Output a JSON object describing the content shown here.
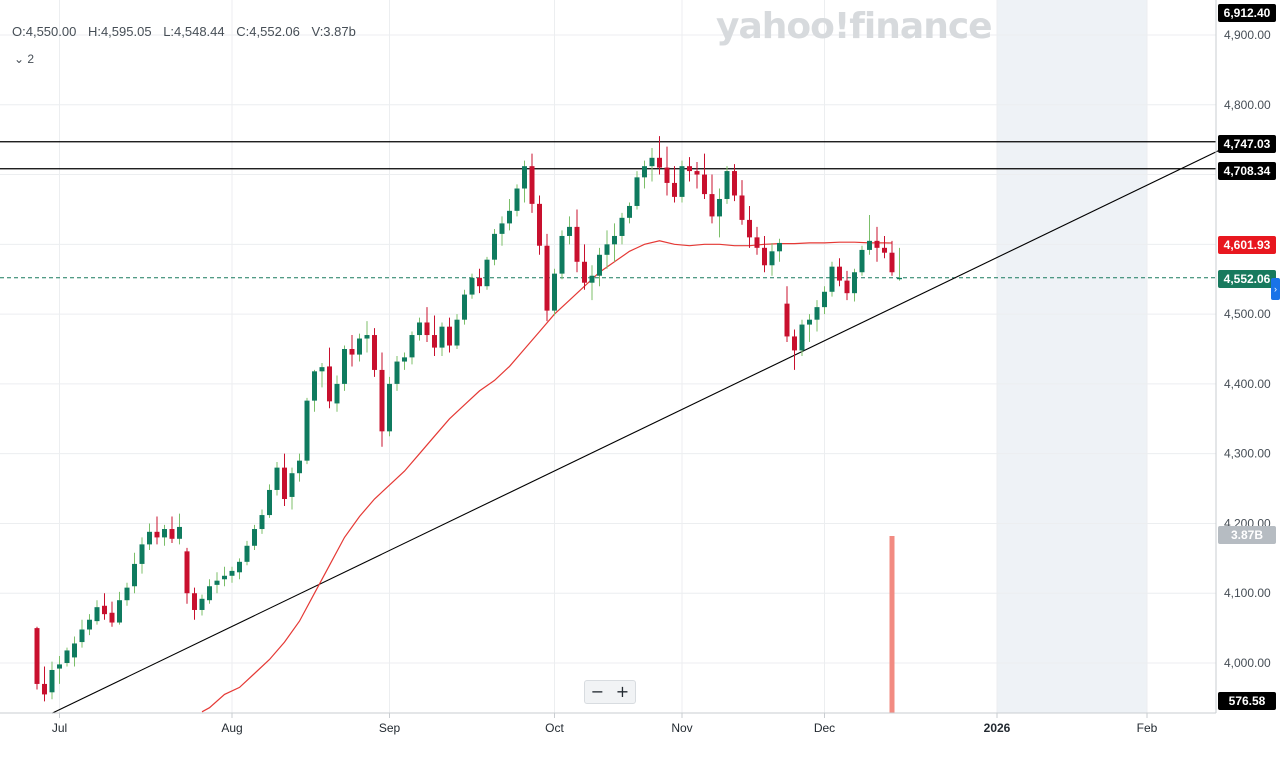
{
  "header": {
    "open": "O:4,550.00",
    "high": "H:4,595.05",
    "low": "L:4,548.44",
    "close": "C:4,552.06",
    "volume": "V:3.87b",
    "indicator_toggle": "⌄ 2"
  },
  "watermark": "yahoo!finance",
  "zoom": {
    "minus": "−",
    "plus": "+"
  },
  "price_tags": {
    "top": "6,912.40",
    "res_high": "4,747.03",
    "res_low": "4,708.34",
    "sma": "4,601.93",
    "last": "4,552.06",
    "volume": "3.87B",
    "bottom": "576.58"
  },
  "colors": {
    "up": "#0f7b5f",
    "down": "#c8102e",
    "sma": "#e53935",
    "volume_bar": "#f28b82",
    "last_price": "#187a5e",
    "sma_tag": "#e8171f",
    "volume_tag": "#b6bcc2",
    "black_tag": "#000000"
  },
  "chart_data": {
    "type": "candlestick",
    "ylim": [
      3930,
      4910
    ],
    "yticks": [
      4000,
      4100,
      4200,
      4300,
      4400,
      4500,
      4600,
      4700,
      4800,
      4900
    ],
    "ytick_labels": [
      "4,000.00",
      "4,100.00",
      "4,200.00",
      "4,300.00",
      "4,400.00",
      "4,500.00",
      "4,600.00",
      "4,700.00",
      "4,800.00",
      "4,900.00"
    ],
    "x_labels": [
      {
        "label": "Jul",
        "idx": 3
      },
      {
        "label": "Aug",
        "idx": 26
      },
      {
        "label": "Sep",
        "idx": 47
      },
      {
        "label": "Oct",
        "idx": 69
      },
      {
        "label": "Nov",
        "idx": 86
      },
      {
        "label": "Dec",
        "idx": 105
      },
      {
        "label": "2026",
        "idx": 128
      },
      {
        "label": "Feb",
        "idx": 148
      }
    ],
    "forecast_shade_idx": [
      128,
      148
    ],
    "horizontal_lines": [
      4747.03,
      4708.34
    ],
    "last_price_line": 4552.06,
    "trendline": [
      {
        "idx": 2,
        "value": 3928
      },
      {
        "idx": 160,
        "value": 4747
      }
    ],
    "candles": [
      [
        4050,
        4052,
        3962,
        3970
      ],
      [
        3970,
        3995,
        3945,
        3955
      ],
      [
        3958,
        4002,
        3948,
        3990
      ],
      [
        3992,
        4010,
        3970,
        3998
      ],
      [
        4000,
        4022,
        3995,
        4018
      ],
      [
        4008,
        4038,
        3995,
        4028
      ],
      [
        4030,
        4062,
        4022,
        4048
      ],
      [
        4048,
        4070,
        4040,
        4062
      ],
      [
        4060,
        4090,
        4055,
        4080
      ],
      [
        4082,
        4100,
        4062,
        4070
      ],
      [
        4072,
        4088,
        4052,
        4058
      ],
      [
        4058,
        4102,
        4055,
        4090
      ],
      [
        4090,
        4115,
        4082,
        4108
      ],
      [
        4110,
        4158,
        4100,
        4142
      ],
      [
        4142,
        4180,
        4128,
        4170
      ],
      [
        4170,
        4200,
        4162,
        4188
      ],
      [
        4188,
        4210,
        4170,
        4180
      ],
      [
        4180,
        4198,
        4168,
        4192
      ],
      [
        4192,
        4210,
        4172,
        4178
      ],
      [
        4178,
        4214,
        4170,
        4195
      ],
      [
        4160,
        4165,
        4085,
        4100
      ],
      [
        4100,
        4108,
        4062,
        4076
      ],
      [
        4076,
        4098,
        4068,
        4092
      ],
      [
        4090,
        4120,
        4085,
        4110
      ],
      [
        4112,
        4130,
        4100,
        4118
      ],
      [
        4120,
        4138,
        4110,
        4125
      ],
      [
        4125,
        4138,
        4115,
        4132
      ],
      [
        4130,
        4150,
        4120,
        4145
      ],
      [
        4145,
        4175,
        4140,
        4168
      ],
      [
        4168,
        4198,
        4162,
        4192
      ],
      [
        4192,
        4220,
        4185,
        4212
      ],
      [
        4212,
        4256,
        4208,
        4248
      ],
      [
        4248,
        4288,
        4240,
        4280
      ],
      [
        4280,
        4300,
        4225,
        4235
      ],
      [
        4238,
        4280,
        4220,
        4272
      ],
      [
        4272,
        4300,
        4260,
        4290
      ],
      [
        4290,
        4380,
        4285,
        4376
      ],
      [
        4376,
        4420,
        4360,
        4418
      ],
      [
        4418,
        4430,
        4395,
        4424
      ],
      [
        4425,
        4452,
        4365,
        4375
      ],
      [
        4372,
        4412,
        4360,
        4400
      ],
      [
        4400,
        4455,
        4390,
        4450
      ],
      [
        4450,
        4470,
        4425,
        4442
      ],
      [
        4442,
        4472,
        4432,
        4465
      ],
      [
        4465,
        4490,
        4445,
        4470
      ],
      [
        4470,
        4480,
        4410,
        4420
      ],
      [
        4420,
        4445,
        4310,
        4332
      ],
      [
        4332,
        4410,
        4325,
        4400
      ],
      [
        4400,
        4440,
        4390,
        4432
      ],
      [
        4432,
        4445,
        4420,
        4438
      ],
      [
        4438,
        4475,
        4428,
        4470
      ],
      [
        4470,
        4495,
        4462,
        4488
      ],
      [
        4488,
        4510,
        4460,
        4470
      ],
      [
        4470,
        4498,
        4440,
        4452
      ],
      [
        4452,
        4488,
        4440,
        4482
      ],
      [
        4482,
        4495,
        4445,
        4455
      ],
      [
        4455,
        4500,
        4450,
        4492
      ],
      [
        4492,
        4535,
        4485,
        4528
      ],
      [
        4528,
        4558,
        4522,
        4552
      ],
      [
        4552,
        4565,
        4530,
        4540
      ],
      [
        4540,
        4582,
        4535,
        4578
      ],
      [
        4578,
        4622,
        4570,
        4615
      ],
      [
        4615,
        4640,
        4598,
        4630
      ],
      [
        4630,
        4665,
        4620,
        4648
      ],
      [
        4648,
        4686,
        4640,
        4680
      ],
      [
        4680,
        4720,
        4660,
        4712
      ],
      [
        4712,
        4730,
        4645,
        4658
      ],
      [
        4658,
        4670,
        4585,
        4598
      ],
      [
        4598,
        4615,
        4490,
        4505
      ],
      [
        4505,
        4565,
        4498,
        4558
      ],
      [
        4558,
        4620,
        4550,
        4612
      ],
      [
        4612,
        4640,
        4600,
        4625
      ],
      [
        4625,
        4650,
        4560,
        4575
      ],
      [
        4575,
        4600,
        4535,
        4545
      ],
      [
        4545,
        4570,
        4520,
        4555
      ],
      [
        4555,
        4595,
        4540,
        4585
      ],
      [
        4585,
        4620,
        4565,
        4600
      ],
      [
        4600,
        4630,
        4575,
        4612
      ],
      [
        4612,
        4645,
        4600,
        4638
      ],
      [
        4638,
        4660,
        4630,
        4655
      ],
      [
        4655,
        4705,
        4650,
        4696
      ],
      [
        4696,
        4720,
        4680,
        4712
      ],
      [
        4712,
        4738,
        4690,
        4724
      ],
      [
        4724,
        4755,
        4700,
        4710
      ],
      [
        4710,
        4740,
        4670,
        4688
      ],
      [
        4688,
        4712,
        4660,
        4668
      ],
      [
        4668,
        4720,
        4660,
        4712
      ],
      [
        4712,
        4725,
        4690,
        4705
      ],
      [
        4705,
        4718,
        4680,
        4700
      ],
      [
        4700,
        4730,
        4665,
        4672
      ],
      [
        4672,
        4700,
        4630,
        4640
      ],
      [
        4640,
        4680,
        4610,
        4665
      ],
      [
        4665,
        4712,
        4658,
        4705
      ],
      [
        4705,
        4715,
        4662,
        4670
      ],
      [
        4670,
        4692,
        4628,
        4635
      ],
      [
        4635,
        4655,
        4595,
        4610
      ],
      [
        4610,
        4625,
        4585,
        4595
      ],
      [
        4595,
        4612,
        4560,
        4570
      ],
      [
        4570,
        4602,
        4555,
        4590
      ],
      [
        4590,
        4608,
        4575,
        4602
      ],
      [
        4515,
        4540,
        4460,
        4468
      ],
      [
        4468,
        4478,
        4420,
        4448
      ],
      [
        4448,
        4492,
        4440,
        4485
      ],
      [
        4485,
        4500,
        4460,
        4492
      ],
      [
        4492,
        4520,
        4475,
        4510
      ],
      [
        4510,
        4540,
        4500,
        4532
      ],
      [
        4532,
        4575,
        4525,
        4568
      ],
      [
        4568,
        4580,
        4540,
        4548
      ],
      [
        4548,
        4562,
        4520,
        4530
      ],
      [
        4530,
        4565,
        4518,
        4560
      ],
      [
        4560,
        4598,
        4555,
        4592
      ],
      [
        4592,
        4642,
        4585,
        4605
      ],
      [
        4605,
        4625,
        4575,
        4595
      ],
      [
        4595,
        4612,
        4580,
        4588
      ],
      [
        4588,
        4605,
        4555,
        4560
      ],
      [
        4550,
        4595,
        4548,
        4552
      ]
    ],
    "candle_start_idx": 0,
    "sma": [
      [
        22,
        3930
      ],
      [
        23,
        3936
      ],
      [
        25,
        3955
      ],
      [
        27,
        3965
      ],
      [
        29,
        3985
      ],
      [
        31,
        4005
      ],
      [
        33,
        4030
      ],
      [
        35,
        4060
      ],
      [
        37,
        4100
      ],
      [
        39,
        4140
      ],
      [
        41,
        4180
      ],
      [
        43,
        4210
      ],
      [
        45,
        4235
      ],
      [
        47,
        4255
      ],
      [
        49,
        4275
      ],
      [
        51,
        4300
      ],
      [
        53,
        4325
      ],
      [
        55,
        4350
      ],
      [
        57,
        4370
      ],
      [
        59,
        4390
      ],
      [
        61,
        4405
      ],
      [
        63,
        4425
      ],
      [
        65,
        4450
      ],
      [
        67,
        4475
      ],
      [
        69,
        4500
      ],
      [
        71,
        4520
      ],
      [
        73,
        4540
      ],
      [
        75,
        4560
      ],
      [
        77,
        4575
      ],
      [
        79,
        4590
      ],
      [
        81,
        4600
      ],
      [
        83,
        4605
      ],
      [
        85,
        4600
      ],
      [
        87,
        4598
      ],
      [
        89,
        4600
      ],
      [
        91,
        4600
      ],
      [
        93,
        4598
      ],
      [
        95,
        4598
      ],
      [
        97,
        4600
      ],
      [
        99,
        4601
      ],
      [
        101,
        4601
      ],
      [
        103,
        4602
      ],
      [
        105,
        4602
      ],
      [
        107,
        4603
      ],
      [
        109,
        4603
      ],
      [
        111,
        4602
      ],
      [
        113,
        4602
      ],
      [
        114,
        4601.93
      ]
    ],
    "volume_bar": {
      "idx": 114,
      "value": 3.87
    }
  }
}
